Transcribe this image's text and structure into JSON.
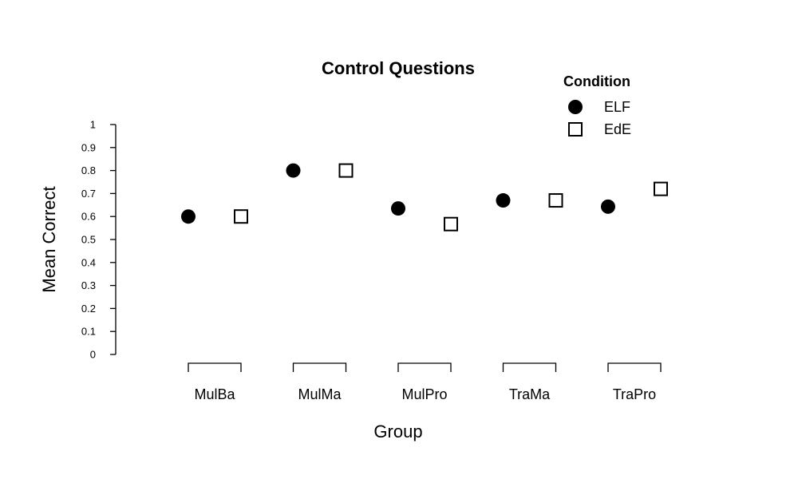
{
  "chart_data": {
    "type": "scatter",
    "title": "Control Questions",
    "xlabel": "Group",
    "ylabel": "Mean Correct",
    "categories": [
      "MulBa",
      "MulMa",
      "MulPro",
      "TraMa",
      "TraPro"
    ],
    "ylim": [
      0,
      1
    ],
    "yticks": [
      "0",
      "0.1",
      "0.2",
      "0.3",
      "0.4",
      "0.5",
      "0.6",
      "0.7",
      "0.8",
      "0.9",
      "1"
    ],
    "grid": false,
    "legend": {
      "title": "Condition",
      "placement": "top-right"
    },
    "series": [
      {
        "name": "ELF",
        "marker": "filled-circle",
        "color": "#000000",
        "values": [
          0.6,
          0.8,
          0.635,
          0.67,
          0.643
        ]
      },
      {
        "name": "EdE",
        "marker": "open-square",
        "color": "#000000",
        "values": [
          0.6,
          0.8,
          0.567,
          0.67,
          0.72
        ]
      }
    ]
  }
}
